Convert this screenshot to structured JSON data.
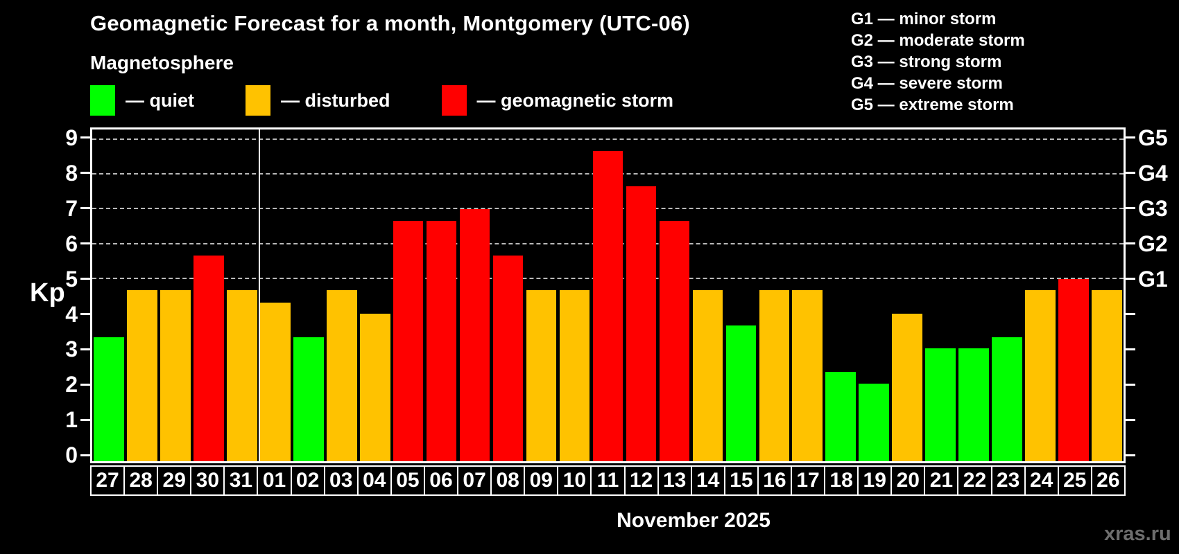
{
  "title": "Geomagnetic Forecast for a month, Montgomery (UTC-06)",
  "subtitle": "Magnetosphere",
  "bar_legend": [
    {
      "key": "quiet",
      "color": "#00ff00",
      "label": "— quiet"
    },
    {
      "key": "disturbed",
      "color": "#ffc200",
      "label": "— disturbed"
    },
    {
      "key": "storm",
      "color": "#ff0000",
      "label": "— geomagnetic storm"
    }
  ],
  "storm_legend": [
    "G1 — minor storm",
    "G2 — moderate storm",
    "G3 — strong storm",
    "G4 — severe storm",
    "G5 — extreme storm"
  ],
  "watermark": "xras.ru",
  "chart_data": {
    "type": "bar",
    "title": "Geomagnetic Forecast for a month, Montgomery (UTC-06)",
    "xlabel": "November 2025",
    "ylabel": "Kp",
    "ylim": [
      0,
      9
    ],
    "y_view": [
      -0.23,
      9.29
    ],
    "y_ticks": [
      0,
      1,
      2,
      3,
      4,
      5,
      6,
      7,
      8,
      9
    ],
    "grid": "horizontal dashed lines at Kp 5-9",
    "legend_position": "top-left",
    "g_levels": [
      {
        "label": "G1",
        "kp": 5
      },
      {
        "label": "G2",
        "kp": 6
      },
      {
        "label": "G3",
        "kp": 7
      },
      {
        "label": "G4",
        "kp": 8
      },
      {
        "label": "G5",
        "kp": 9
      }
    ],
    "month_divider_index": 5,
    "categories": [
      "27",
      "28",
      "29",
      "30",
      "31",
      "01",
      "02",
      "03",
      "04",
      "05",
      "06",
      "07",
      "08",
      "09",
      "10",
      "11",
      "12",
      "13",
      "14",
      "15",
      "16",
      "17",
      "18",
      "19",
      "20",
      "21",
      "22",
      "23",
      "24",
      "25",
      "26"
    ],
    "values": [
      3.33,
      4.67,
      4.67,
      5.67,
      4.67,
      4.33,
      3.33,
      4.67,
      4.0,
      6.67,
      6.67,
      7.0,
      5.67,
      4.67,
      4.67,
      8.67,
      7.67,
      6.67,
      4.67,
      3.67,
      4.67,
      4.67,
      2.33,
      2.0,
      4.0,
      3.0,
      3.0,
      3.33,
      4.67,
      5.0,
      4.67
    ],
    "statuses": [
      "quiet",
      "disturbed",
      "disturbed",
      "storm",
      "disturbed",
      "disturbed",
      "quiet",
      "disturbed",
      "disturbed",
      "storm",
      "storm",
      "storm",
      "storm",
      "disturbed",
      "disturbed",
      "storm",
      "storm",
      "storm",
      "disturbed",
      "quiet",
      "disturbed",
      "disturbed",
      "quiet",
      "quiet",
      "disturbed",
      "quiet",
      "quiet",
      "quiet",
      "disturbed",
      "storm",
      "disturbed"
    ],
    "colors": {
      "quiet": "#00ff00",
      "disturbed": "#ffc200",
      "storm": "#ff0000"
    }
  }
}
